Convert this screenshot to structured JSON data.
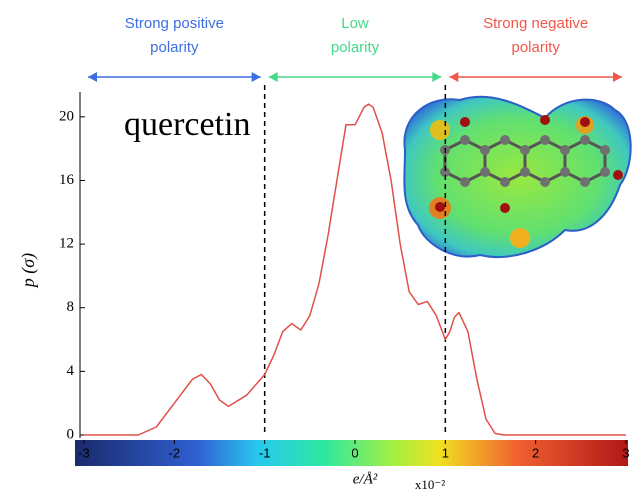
{
  "chart_data": {
    "type": "line",
    "title": "quercetin",
    "y_label": "p (σ)",
    "x_label": "e/Å²",
    "x_unit": "x10⁻²",
    "color": "#e0504a",
    "x": [
      -3,
      -2.4,
      -2.2,
      -2.0,
      -1.8,
      -1.7,
      -1.6,
      -1.5,
      -1.4,
      -1.2,
      -1.0,
      -0.9,
      -0.8,
      -0.7,
      -0.6,
      -0.5,
      -0.4,
      -0.3,
      -0.2,
      -0.1,
      0,
      0.1,
      0.15,
      0.2,
      0.3,
      0.4,
      0.5,
      0.6,
      0.7,
      0.8,
      0.9,
      1.0,
      1.05,
      1.1,
      1.15,
      1.25,
      1.35,
      1.45,
      1.55,
      1.65,
      3
    ],
    "values": [
      0,
      0,
      0.5,
      2.0,
      3.5,
      3.8,
      3.2,
      2.2,
      1.8,
      2.5,
      3.8,
      5.0,
      6.5,
      7.0,
      6.6,
      7.5,
      9.5,
      12.5,
      16,
      19.5,
      19.5,
      20.6,
      20.8,
      20.6,
      19,
      16,
      12,
      9,
      8.2,
      8.4,
      7.5,
      6.0,
      6.5,
      7.4,
      7.7,
      6.5,
      3.5,
      1.0,
      0.1,
      0,
      0
    ],
    "xlim": [
      -3,
      3
    ],
    "xticks": [
      -3,
      -2,
      -1,
      0,
      1,
      2,
      3
    ],
    "ylim": [
      0,
      22
    ],
    "yticks": [
      0,
      4,
      8,
      12,
      16,
      20
    ],
    "vlines": [
      -1,
      1
    ],
    "regions": [
      {
        "lines": [
          "Strong positive",
          "polarity"
        ],
        "color": "#3d6fe0",
        "range": [
          -3,
          -1
        ]
      },
      {
        "lines": [
          "Low",
          "polarity"
        ],
        "color": "#45d98a",
        "range": [
          -1,
          1
        ]
      },
      {
        "lines": [
          "Strong negative",
          "polarity"
        ],
        "color": "#f0574a",
        "range": [
          1,
          3
        ]
      }
    ]
  }
}
